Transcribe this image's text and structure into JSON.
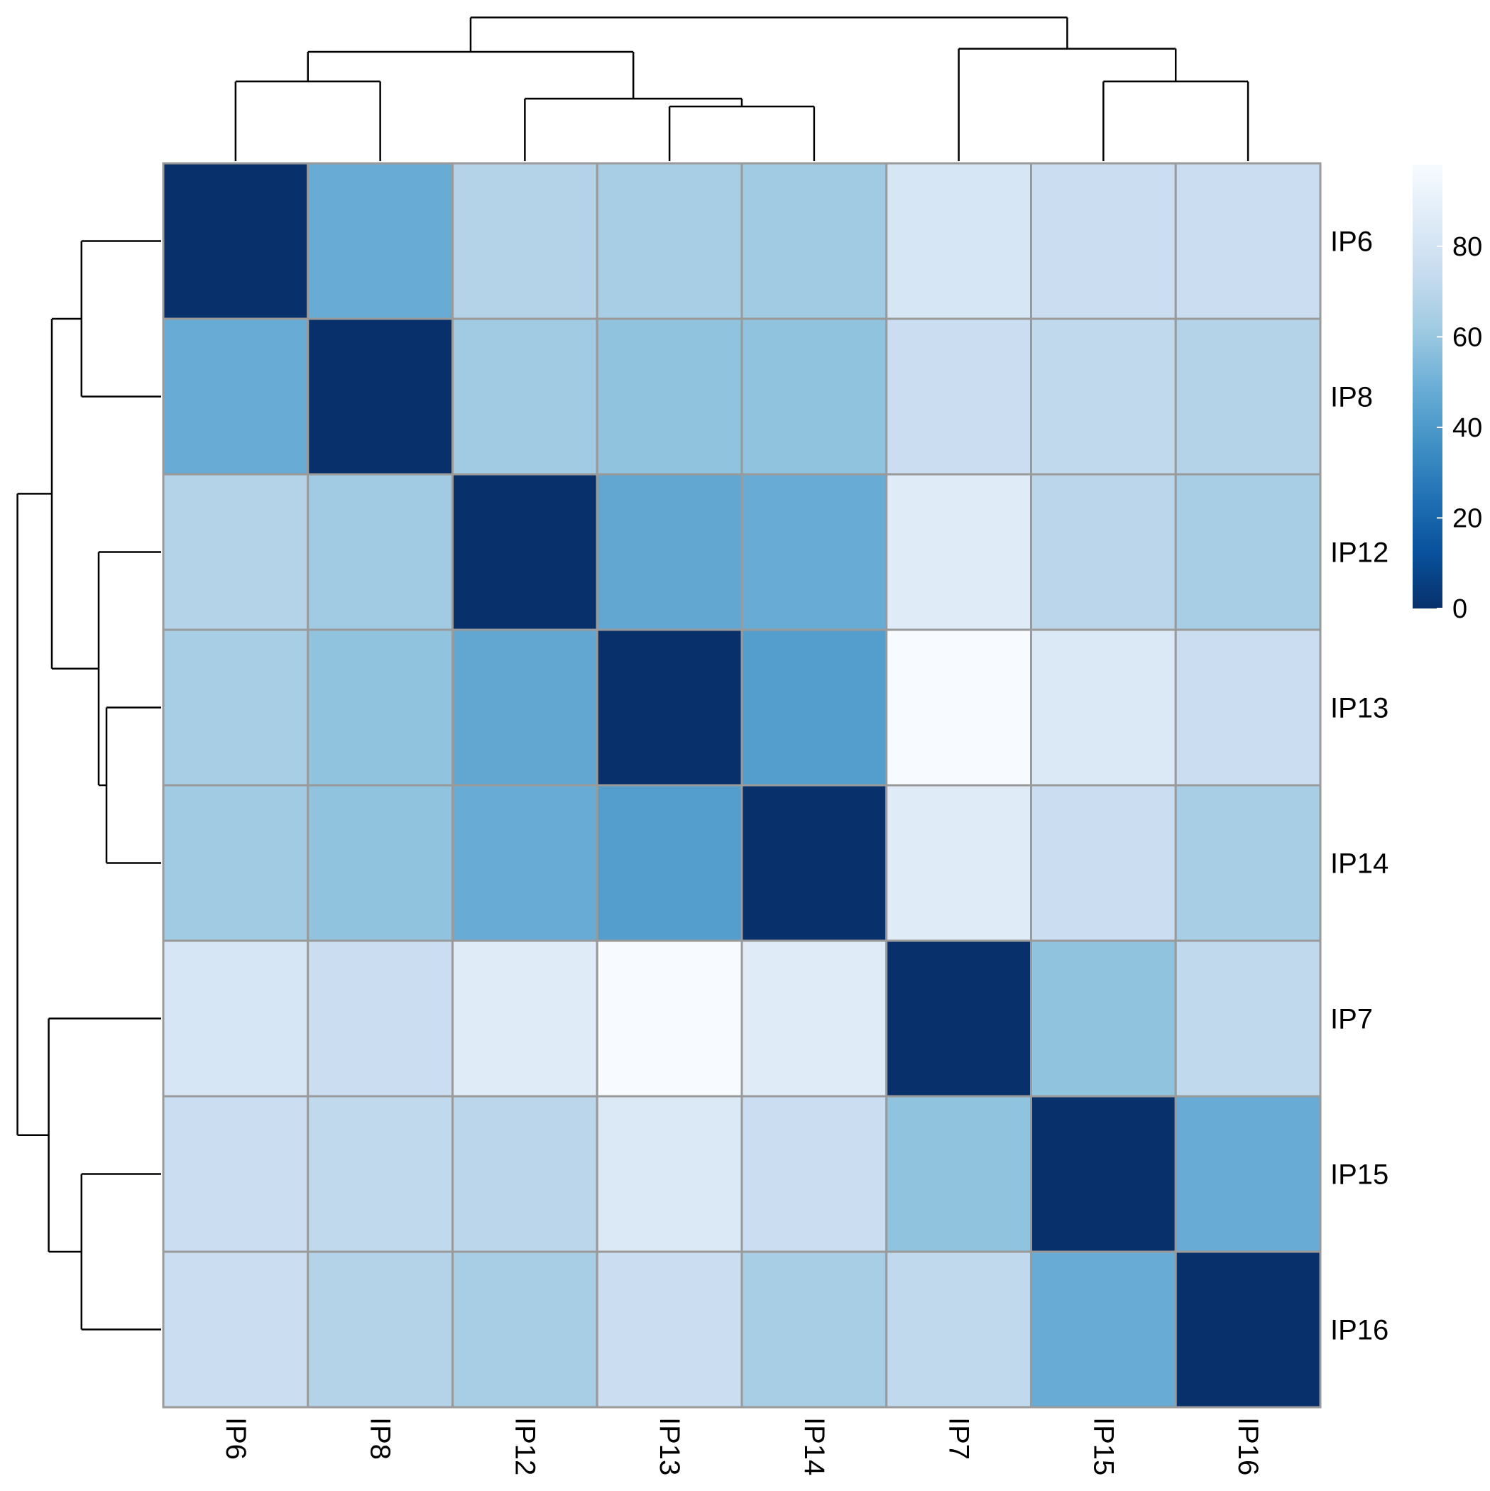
{
  "chart_data": {
    "type": "heatmap",
    "title": "",
    "xlabel": "",
    "ylabel": "",
    "rows": [
      "IP6",
      "IP8",
      "IP12",
      "IP13",
      "IP14",
      "IP7",
      "IP15",
      "IP16"
    ],
    "cols": [
      "IP6",
      "IP8",
      "IP12",
      "IP13",
      "IP14",
      "IP7",
      "IP15",
      "IP16"
    ],
    "values": [
      [
        0,
        48,
        68,
        64,
        62,
        82,
        76,
        76
      ],
      [
        48,
        0,
        62,
        58,
        58,
        76,
        72,
        68
      ],
      [
        68,
        62,
        0,
        46,
        48,
        86,
        70,
        64
      ],
      [
        64,
        58,
        46,
        0,
        42,
        98,
        84,
        76
      ],
      [
        62,
        58,
        48,
        42,
        0,
        86,
        76,
        64
      ],
      [
        82,
        76,
        86,
        98,
        86,
        0,
        58,
        72
      ],
      [
        76,
        72,
        70,
        84,
        76,
        58,
        0,
        48
      ],
      [
        76,
        68,
        64,
        76,
        64,
        72,
        48,
        0
      ]
    ],
    "colorscale": {
      "name": "Blues",
      "min": 0,
      "max": 98,
      "ticks": [
        0,
        20,
        40,
        60,
        80
      ],
      "stops": [
        "#08306b",
        "#08519c",
        "#2171b5",
        "#4292c6",
        "#6baed6",
        "#9ecae1",
        "#c6dbef",
        "#deebf7",
        "#f7fbff"
      ]
    },
    "legend": {
      "placement": "right"
    },
    "dendrogram": {
      "rows": "left",
      "cols": "top"
    }
  }
}
